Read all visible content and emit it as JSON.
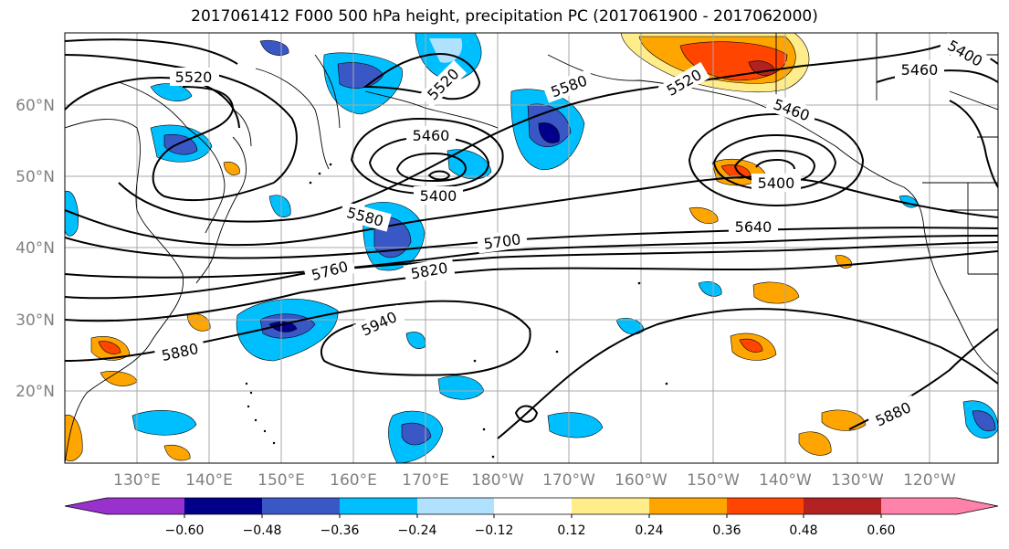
{
  "title": "2017061412 F000 500 hPa height, precipitation PC (2017061900 - 2017062000)",
  "map": {
    "lat_labels": [
      "60°N",
      "50°N",
      "40°N",
      "30°N",
      "20°N"
    ],
    "lon_labels": [
      "130°E",
      "140°E",
      "150°E",
      "160°E",
      "170°E",
      "180°W",
      "170°W",
      "160°W",
      "150°W",
      "140°W",
      "130°W",
      "120°W"
    ],
    "contour_labels": [
      "5520",
      "5520",
      "5580",
      "5520",
      "5460",
      "5400",
      "5460",
      "5400",
      "5460",
      "5400",
      "5580",
      "5700",
      "5640",
      "5760",
      "5820",
      "5940",
      "5880",
      "5880"
    ]
  },
  "colorbar": {
    "tick_labels": [
      "−0.60",
      "−0.48",
      "−0.36",
      "−0.24",
      "−0.12",
      "0.12",
      "0.24",
      "0.36",
      "0.48",
      "0.60"
    ],
    "colors": [
      "#9932cc",
      "#00008b",
      "#3a57c6",
      "#00bfff",
      "#b0e2ff",
      "#ffffff",
      "#ffec8b",
      "#ffa500",
      "#ff4500",
      "#b22222",
      "#ff82ab"
    ]
  }
}
